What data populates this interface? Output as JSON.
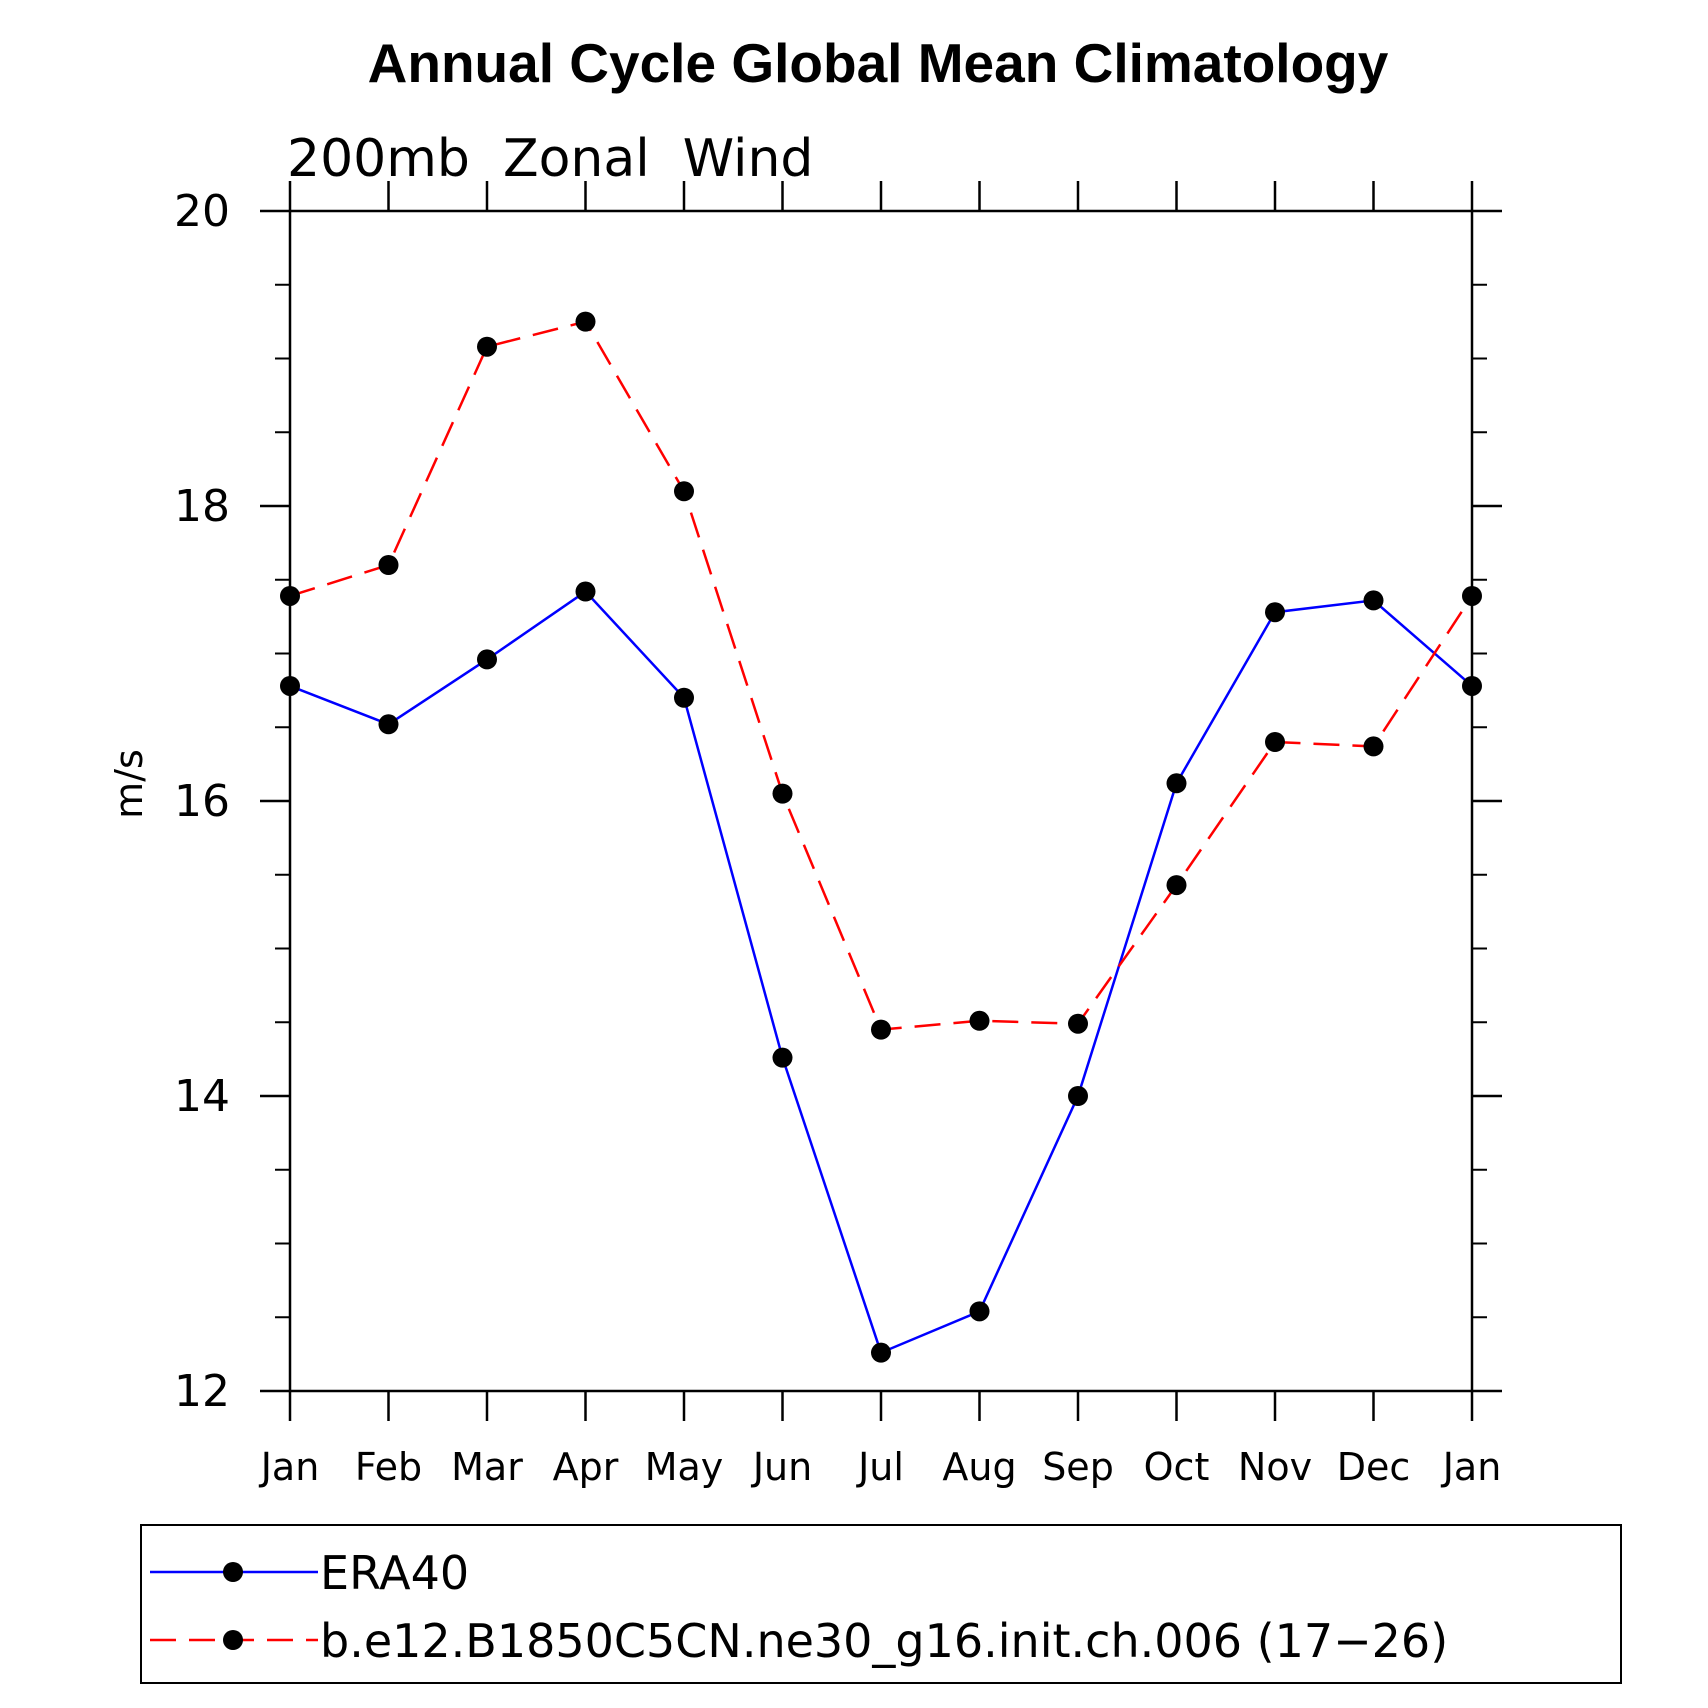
{
  "chart_data": {
    "type": "line",
    "title": "Annual Cycle Global Mean Climatology",
    "subtitle": "200mb  Zonal  Wind",
    "xlabel": "",
    "ylabel": "m/s",
    "ylim": [
      12,
      20
    ],
    "yticks": [
      12,
      14,
      16,
      18,
      20
    ],
    "categories": [
      "Jan",
      "Feb",
      "Mar",
      "Apr",
      "May",
      "Jun",
      "Jul",
      "Aug",
      "Sep",
      "Oct",
      "Nov",
      "Dec",
      "Jan"
    ],
    "series": [
      {
        "name": "ERA40",
        "color": "#0000ff",
        "dash": "solid",
        "values": [
          16.78,
          16.52,
          16.96,
          17.42,
          16.7,
          14.26,
          12.26,
          12.54,
          14.0,
          16.12,
          17.28,
          17.36,
          16.78
        ]
      },
      {
        "name": "b.e12.B1850C5CN.ne30_g16.init.ch.006 (17-26)",
        "color": "#ff0000",
        "dash": "dashed",
        "values": [
          17.39,
          17.6,
          19.08,
          19.25,
          18.1,
          16.05,
          14.45,
          14.51,
          14.49,
          15.43,
          16.4,
          16.37,
          17.39
        ]
      }
    ],
    "legend": {
      "position": "bottom",
      "entries": [
        "ERA40",
        "b.e12.B1850C5CN.ne30_g16.init.ch.006 (17−26)"
      ]
    },
    "marker_color": "#000000",
    "axis_color": "#000000"
  }
}
